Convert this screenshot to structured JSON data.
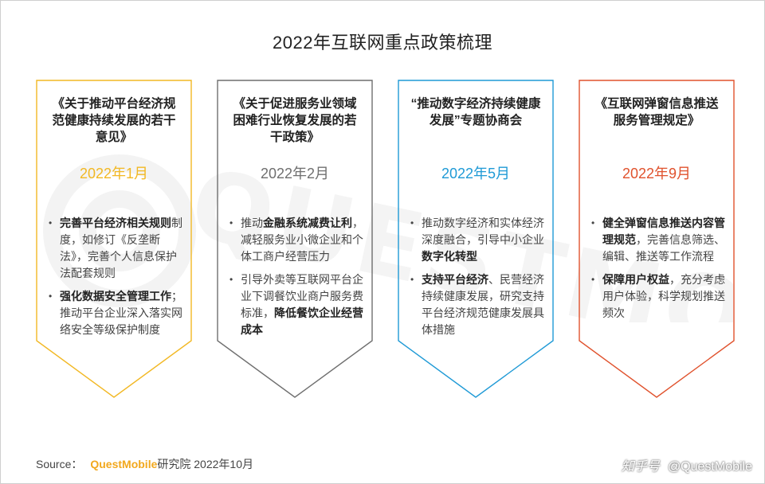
{
  "title": "2022年互联网重点政策梳理",
  "colors": {
    "gold": "#f2b824",
    "gray": "#6f6f6f",
    "blue": "#1f9ad6",
    "red": "#e0522d"
  },
  "cards": [
    {
      "title": "《关于推动平台经济规范健康持续发展的若干意见》",
      "date": "2022年1月",
      "color": "#f2b824",
      "items": [
        {
          "bold": "完善平台经济相关规则",
          "text": "制度，如修订《反垄断法》，完善个人信息保护法配套规则",
          "bold2": "",
          "text2": ""
        },
        {
          "bold": "强化数据安全管理工作",
          "text": "；推动平台企业深入落实网络安全等级保护制度",
          "bold2": "",
          "text2": ""
        }
      ]
    },
    {
      "title": "《关于促进服务业领域困难行业恢复发展的若干政策》",
      "date": "2022年2月",
      "color": "#6f6f6f",
      "items": [
        {
          "pre": "推动",
          "bold": "金融系统减费让利",
          "text": "，减轻服务业小微企业和个体工商户经营压力",
          "bold2": "",
          "text2": ""
        },
        {
          "pre": "引导外卖等互联网平台企业下调餐饮业商户服务费标准，",
          "bold": "降低餐饮企业经营成本",
          "text": "",
          "bold2": "",
          "text2": ""
        }
      ]
    },
    {
      "title": "“推动数字经济持续健康发展”专题协商会",
      "date": "2022年5月",
      "color": "#1f9ad6",
      "items": [
        {
          "pre": "推动数字经济和实体经济深度融合，引导中小企业",
          "bold": "数字化转型",
          "text": "",
          "bold2": "",
          "text2": ""
        },
        {
          "bold": "支持平台经济",
          "text": "、民营经济持续健康发展，研究支持平台经济规范健康发展具体措施",
          "bold2": "",
          "text2": ""
        }
      ]
    },
    {
      "title": "《互联网弹窗信息推送服务管理规定》",
      "date": "2022年9月",
      "color": "#e0522d",
      "items": [
        {
          "bold": "健全弹窗信息推送内容管理规范",
          "text": "，完善信息筛选、编辑、推送等工作流程",
          "bold2": "",
          "text2": ""
        },
        {
          "bold": "保障用户权益",
          "text": "，充分考虑用户体验，科学规划推送频次",
          "bold2": "",
          "text2": ""
        }
      ]
    }
  ],
  "bullet": "•",
  "source": {
    "label": "Source：",
    "brand": "QuestMobile",
    "rest": "研究院 2022年10月"
  },
  "footer": {
    "platform": "知乎号",
    "handle": "@QuestMobile"
  }
}
